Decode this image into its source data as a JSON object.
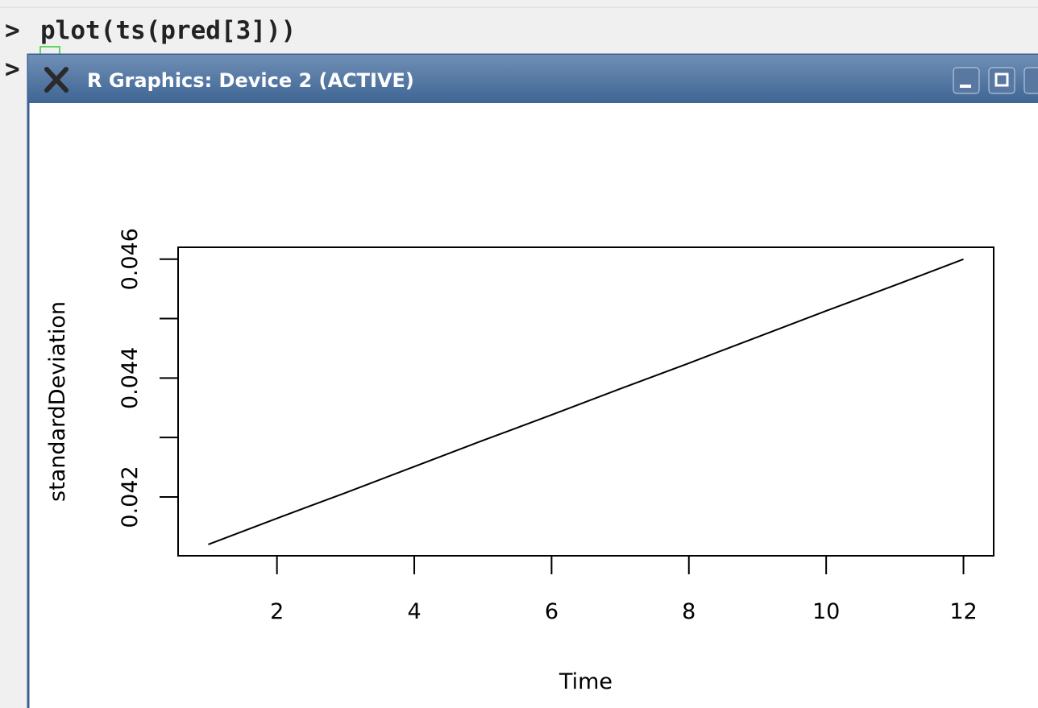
{
  "console": {
    "prompts": [
      ">",
      ">"
    ],
    "command": "plot(ts(pred[3]))"
  },
  "window": {
    "title": "R Graphics: Device 2 (ACTIVE)"
  },
  "chart_data": {
    "type": "line",
    "x_label": "Time",
    "y_label": "standardDeviation",
    "x": [
      1,
      2,
      3,
      4,
      5,
      6,
      7,
      8,
      9,
      10,
      11,
      12
    ],
    "values": [
      0.0412,
      0.04164,
      0.04207,
      0.04251,
      0.04295,
      0.04338,
      0.04382,
      0.04425,
      0.04469,
      0.04513,
      0.04556,
      0.046
    ],
    "color": "#000000",
    "xlim": [
      0.56,
      12.44
    ],
    "ylim": [
      0.04101,
      0.0462
    ],
    "xticks": [
      2,
      4,
      6,
      8,
      10,
      12
    ],
    "yticks": [
      0.042,
      0.044,
      0.046
    ],
    "yminor_ticks": [
      0.043,
      0.045
    ]
  }
}
